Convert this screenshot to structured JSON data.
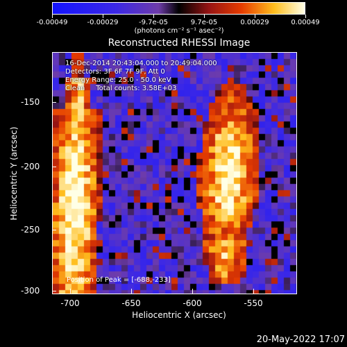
{
  "colorbar": {
    "tick_labels": [
      "-0.00049",
      "-0.00029",
      "-9.7e-05",
      "9.7e-05",
      "0.00029",
      "0.00049"
    ],
    "units": "(photons cm⁻² s⁻¹ asec⁻²)"
  },
  "title": "Reconstructed RHESSI Image",
  "info": {
    "line1": "16-Dec-2014 20:43:04.000 to 20:49:04.000",
    "line2": "Detectors: 3F 6F 7F 9F, Att 0",
    "line3": "Energy Range: 25.0 - 50.0 keV",
    "line4": "Clean     Total counts: 3.58E+03"
  },
  "peak_label": "Position of Peak = [-688,-233]",
  "axes": {
    "x_label": "Heliocentric X (arcsec)",
    "y_label": "Heliocentric Y (arcsec)",
    "x_ticks": [
      "-700",
      "-650",
      "-600",
      "-550"
    ],
    "y_ticks": [
      "-150",
      "-200",
      "-250",
      "-300"
    ]
  },
  "timestamp": "20-May-2022 17:07",
  "colors": {
    "background": "#000000",
    "mid": "#6a3aa8",
    "hot": "#ffffa0",
    "cold": "#2020ff"
  }
}
